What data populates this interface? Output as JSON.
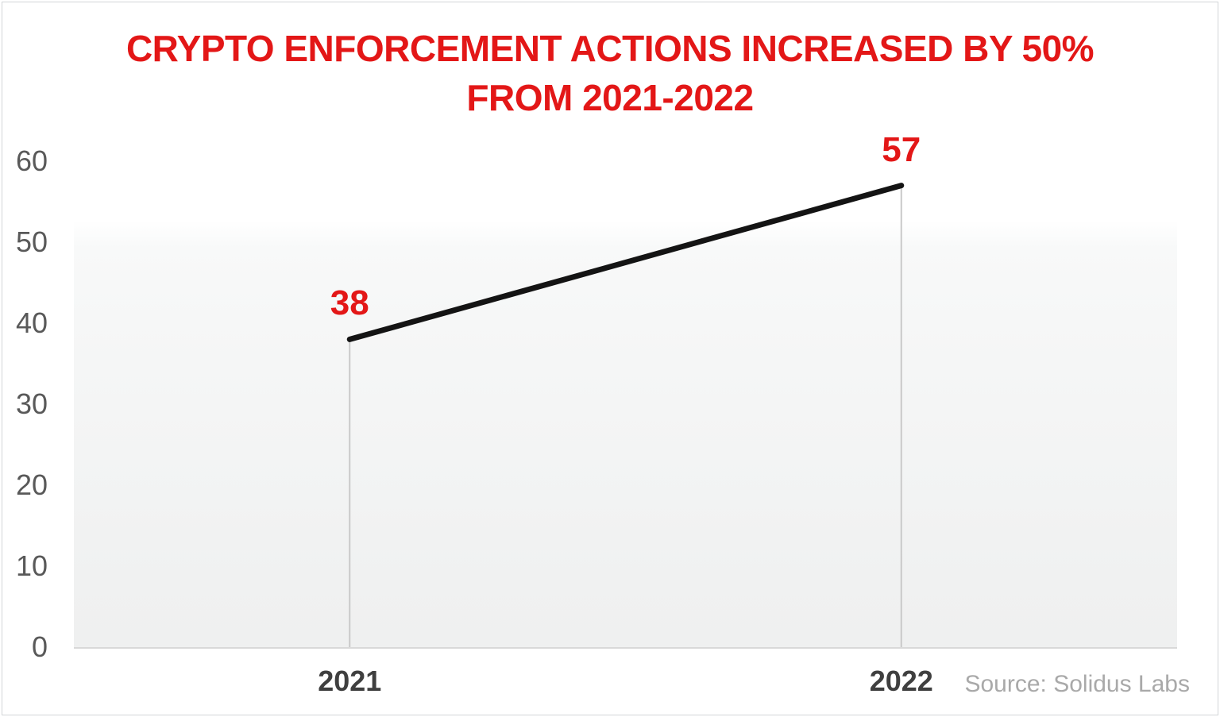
{
  "title": {
    "line1": "CRYPTO ENFORCEMENT ACTIONS INCREASED BY 50%",
    "line2": "FROM 2021-2022",
    "color": "#e31717"
  },
  "source": {
    "text": "Source: Solidus Labs",
    "color": "#a9a9a9"
  },
  "frame": {
    "border_color": "#d2d6d7"
  },
  "chart_data": {
    "type": "line",
    "categories": [
      "2021",
      "2022"
    ],
    "values": [
      38,
      57
    ],
    "data_labels": [
      "38",
      "57"
    ],
    "title": "CRYPTO ENFORCEMENT ACTIONS INCREASED BY 50% FROM 2021-2022",
    "xlabel": "",
    "ylabel": "",
    "ylim": [
      0,
      60
    ],
    "yticks": [
      0,
      10,
      20,
      30,
      40,
      50,
      60
    ],
    "grid": false,
    "legend": "none",
    "annotations": [
      "Source: Solidus Labs"
    ],
    "colors": {
      "line": "#141414",
      "data_label": "#e31717",
      "title": "#e31717",
      "y_tick_label": "#595959",
      "x_tick_label": "#3f3f3f",
      "drop_line": "#c9c9c9",
      "axis_line": "#d9d9d9",
      "source_text": "#a9a9a9",
      "plot_fill_top": "#ffffff",
      "plot_fill_bottom": "#eff0f0"
    }
  }
}
